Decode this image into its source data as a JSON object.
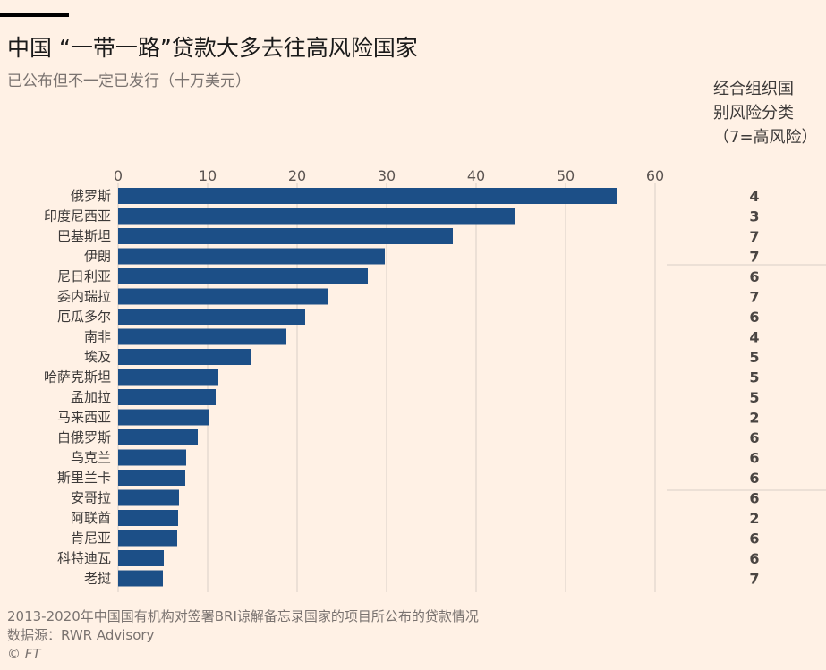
{
  "title": "中国 “一带一路”贷款大多去往高风险国家",
  "subtitle": "已公布但不一定已发行（十万美元）",
  "risk_header": [
    "经合组织国",
    "别风险分类",
    "（7=高风险）"
  ],
  "footnote": {
    "note": "2013-2020年中国国有机构对签署BRI谅解备忘录国家的项目所公布的贷款情况",
    "source": "数据源：RWR Advisory",
    "credit": "© FT"
  },
  "colors": {
    "bar": "#1c4f87",
    "background": "#fff1e5",
    "grid": "#d9cfc6"
  },
  "chart_data": {
    "type": "bar",
    "orientation": "horizontal",
    "categories": [
      "俄罗斯",
      "印度尼西亚",
      "巴基斯坦",
      "伊朗",
      "尼日利亚",
      "委内瑞拉",
      "厄瓜多尔",
      "南非",
      "埃及",
      "哈萨克斯坦",
      "孟加拉",
      "马来西亚",
      "白俄罗斯",
      "乌克兰",
      "斯里兰卡",
      "安哥拉",
      "阿联酋",
      "肯尼亚",
      "科特迪瓦",
      "老挝"
    ],
    "values": [
      55.7,
      44.4,
      37.4,
      29.8,
      27.9,
      23.4,
      20.9,
      18.8,
      14.8,
      11.2,
      10.9,
      10.2,
      8.9,
      7.6,
      7.5,
      6.8,
      6.7,
      6.6,
      5.1,
      5.0
    ],
    "risk": [
      "4",
      "3",
      "7",
      "7",
      "6",
      "7",
      "6",
      "4",
      "5",
      "5",
      "5",
      "2",
      "6",
      "6",
      "6",
      "6",
      "2",
      "6",
      "6",
      "7"
    ],
    "xticks": [
      0,
      10,
      20,
      30,
      40,
      50,
      60
    ],
    "xlim": [
      0,
      60
    ],
    "grid": true
  }
}
